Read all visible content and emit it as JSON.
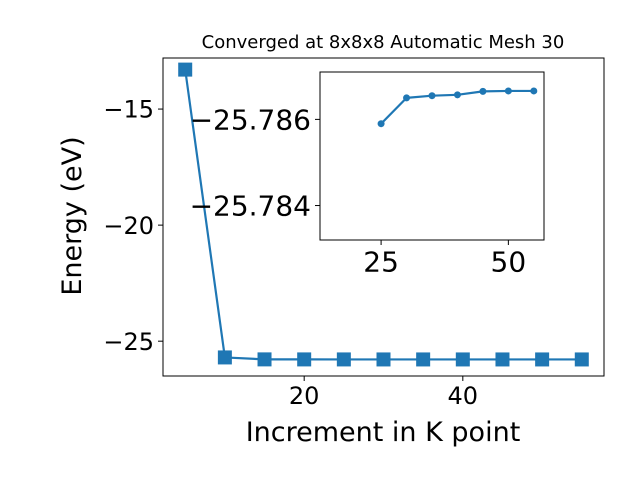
{
  "chart_data": [
    {
      "type": "line",
      "title": "Converged at 8x8x8 Automatic Mesh 30",
      "xlabel": "Increment in K point",
      "ylabel": "Energy (eV)",
      "xlim": [
        2.2,
        57.8
      ],
      "ylim": [
        -26.5,
        -12.8
      ],
      "xticks": [
        20,
        40
      ],
      "yticks": [
        -15,
        -20,
        -25
      ],
      "marker": "square",
      "color": "#1f77b4",
      "grid": false,
      "series": [
        {
          "x": [
            5,
            10,
            15,
            20,
            25,
            30,
            35,
            40,
            45,
            50,
            55
          ],
          "y": [
            -13.3,
            -25.7,
            -25.784,
            -25.7852,
            -25.7859,
            -25.7865,
            -25.78655,
            -25.78657,
            -25.78665,
            -25.78666,
            -25.78666
          ]
        }
      ]
    },
    {
      "type": "line",
      "xlim": [
        13,
        57
      ],
      "ylim": [
        -25.7832,
        -25.7871
      ],
      "xticks": [
        25,
        50
      ],
      "yticks": [
        -25.786,
        -25.784
      ],
      "ytick_labels": [
        "−25.786",
        "−25.784"
      ],
      "marker": "circle",
      "color": "#1f77b4",
      "grid": false,
      "series": [
        {
          "x": [
            25,
            30,
            35,
            40,
            45,
            50,
            55
          ],
          "y": [
            -25.7859,
            -25.7865,
            -25.78655,
            -25.78657,
            -25.78665,
            -25.78666,
            -25.78666
          ]
        }
      ]
    }
  ]
}
